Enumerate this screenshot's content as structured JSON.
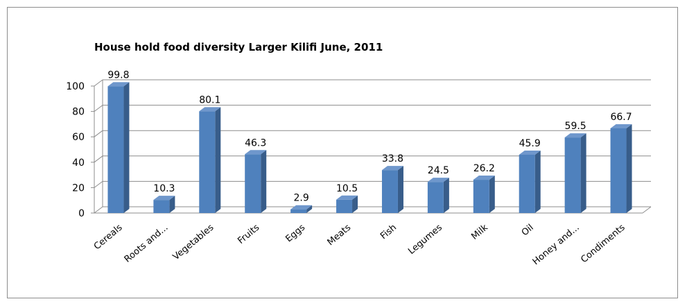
{
  "chart_data": {
    "type": "bar",
    "title": "House hold food diversity Larger Kilifi June, 2011",
    "xlabel": "",
    "ylabel": "",
    "ylim": [
      0,
      100
    ],
    "yticks": [
      0,
      20,
      40,
      60,
      80,
      100
    ],
    "grid": true,
    "legend": "none",
    "categories": [
      "Cereals",
      "Roots and...",
      "Vegetables",
      "Fruits",
      "Eggs",
      "Meats",
      "Fish",
      "Legumes",
      "Milk",
      "Oil",
      "Honey and...",
      "Condiments"
    ],
    "values": [
      99.8,
      10.3,
      80.1,
      46.3,
      2.9,
      10.5,
      33.8,
      24.5,
      26.2,
      45.9,
      59.5,
      66.7
    ],
    "data_labels": [
      "99.8",
      "10.3",
      "80.1",
      "46.3",
      "2.9",
      "10.5",
      "33.8",
      "24.5",
      "26.2",
      "45.9",
      "59.5",
      "66.7"
    ],
    "colors": {
      "bar_front": "#4f81bd",
      "bar_side": "#385d8a",
      "bar_top": "#6f97cc",
      "gridline": "#8c8c8c"
    }
  }
}
